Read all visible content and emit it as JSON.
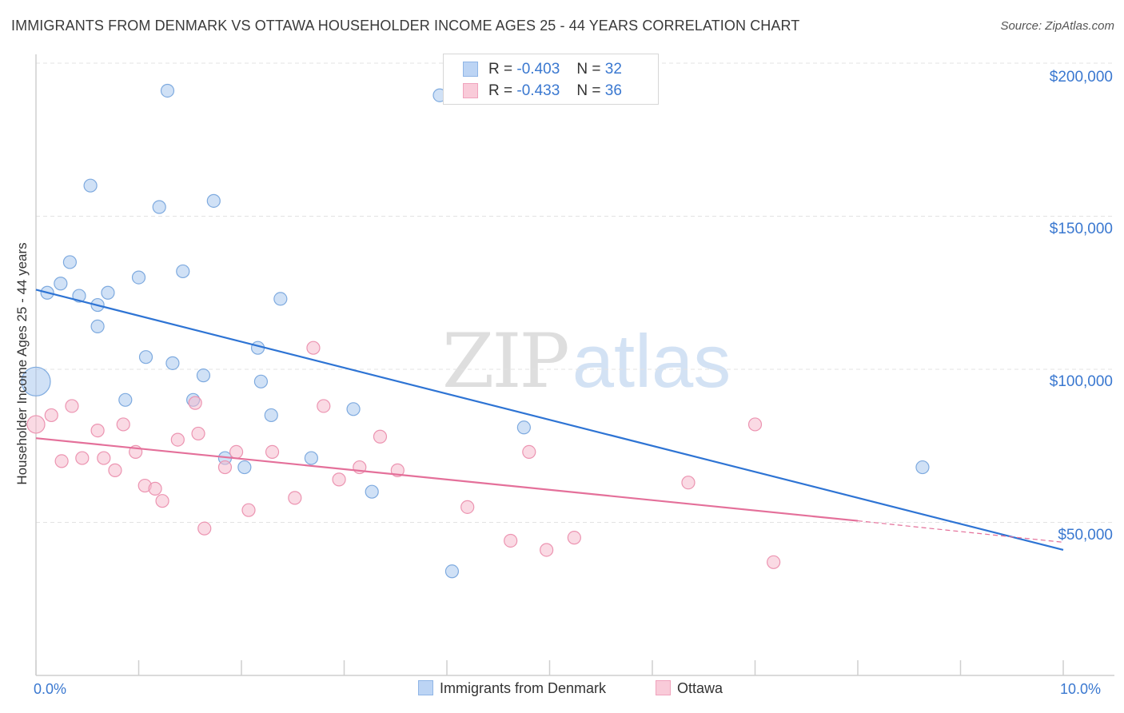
{
  "title": "IMMIGRANTS FROM DENMARK VS OTTAWA HOUSEHOLDER INCOME AGES 25 - 44 YEARS CORRELATION CHART",
  "source": "Source: ZipAtlas.com",
  "watermark": {
    "zip": "ZIP",
    "atlas": "atlas"
  },
  "legend_top": [
    {
      "r_label": "R =",
      "r_value": "-0.403",
      "n_label": "N =",
      "n_value": "32"
    },
    {
      "r_label": "R =",
      "r_value": "-0.433",
      "n_label": "N =",
      "n_value": "36"
    }
  ],
  "legend_bottom": [
    "Immigrants from Denmark",
    "Ottawa"
  ],
  "chart_data": {
    "type": "scatter",
    "title": "IMMIGRANTS FROM DENMARK VS OTTAWA HOUSEHOLDER INCOME AGES 25 - 44 YEARS CORRELATION CHART",
    "xlabel": "",
    "ylabel": "Householder Income Ages 25 - 44 years",
    "xlim": [
      0,
      10
    ],
    "ylim": [
      0,
      205000
    ],
    "x_unit": "%",
    "x_tick_labels": [
      "0.0%",
      "10.0%"
    ],
    "y_ticks": [
      50000,
      100000,
      150000,
      200000
    ],
    "y_tick_labels": [
      "$50,000",
      "$100,000",
      "$150,000",
      "$200,000"
    ],
    "grid": true,
    "legend_position": "bottom",
    "series": [
      {
        "name": "Immigrants from Denmark",
        "color": "#a9c8ef",
        "stroke": "#7eaadf",
        "r": -0.403,
        "n": 32,
        "trend": {
          "x": [
            0.0,
            10.0
          ],
          "y": [
            126000,
            41000
          ]
        },
        "points": [
          [
            1.28,
            191000
          ],
          [
            3.93,
            189500
          ],
          [
            0.53,
            160000
          ],
          [
            1.2,
            153000
          ],
          [
            1.73,
            155000
          ],
          [
            0.33,
            135000
          ],
          [
            1.43,
            132000
          ],
          [
            0.24,
            128000
          ],
          [
            1.0,
            130000
          ],
          [
            0.11,
            125000
          ],
          [
            0.42,
            124000
          ],
          [
            0.7,
            125000
          ],
          [
            0.6,
            121000
          ],
          [
            2.38,
            123000
          ],
          [
            0.6,
            114000
          ],
          [
            2.16,
            107000
          ],
          [
            1.07,
            104000
          ],
          [
            1.33,
            102000
          ],
          [
            1.63,
            98000
          ],
          [
            2.19,
            96000
          ],
          [
            0.0,
            96000
          ],
          [
            0.87,
            90000
          ],
          [
            1.53,
            90000
          ],
          [
            2.29,
            85000
          ],
          [
            3.09,
            87000
          ],
          [
            4.75,
            81000
          ],
          [
            1.84,
            71000
          ],
          [
            2.03,
            68000
          ],
          [
            2.68,
            71000
          ],
          [
            3.27,
            60000
          ],
          [
            8.63,
            68000
          ],
          [
            4.05,
            34000
          ]
        ]
      },
      {
        "name": "Ottawa",
        "color": "#f6bccd",
        "stroke": "#ec94b1",
        "r": -0.433,
        "n": 36,
        "trend": {
          "x": [
            0.0,
            8.0
          ],
          "y": [
            77500,
            50500
          ],
          "dashed_to": {
            "x": 10.0,
            "y": 43500
          }
        },
        "points": [
          [
            2.7,
            107000
          ],
          [
            0.35,
            88000
          ],
          [
            2.8,
            88000
          ],
          [
            0.15,
            85000
          ],
          [
            0.6,
            80000
          ],
          [
            1.55,
            89000
          ],
          [
            0.85,
            82000
          ],
          [
            1.38,
            77000
          ],
          [
            1.58,
            79000
          ],
          [
            3.35,
            78000
          ],
          [
            7.0,
            82000
          ],
          [
            0.0,
            82000
          ],
          [
            0.25,
            70000
          ],
          [
            0.45,
            71000
          ],
          [
            0.66,
            71000
          ],
          [
            0.77,
            67000
          ],
          [
            0.97,
            73000
          ],
          [
            1.06,
            62000
          ],
          [
            1.16,
            61000
          ],
          [
            1.95,
            73000
          ],
          [
            2.3,
            73000
          ],
          [
            1.84,
            68000
          ],
          [
            3.15,
            68000
          ],
          [
            3.52,
            67000
          ],
          [
            2.95,
            64000
          ],
          [
            4.8,
            73000
          ],
          [
            1.23,
            57000
          ],
          [
            2.52,
            58000
          ],
          [
            2.07,
            54000
          ],
          [
            4.2,
            55000
          ],
          [
            6.35,
            63000
          ],
          [
            1.64,
            48000
          ],
          [
            4.62,
            44000
          ],
          [
            4.97,
            41000
          ],
          [
            5.24,
            45000
          ],
          [
            7.18,
            37000
          ]
        ]
      }
    ]
  }
}
